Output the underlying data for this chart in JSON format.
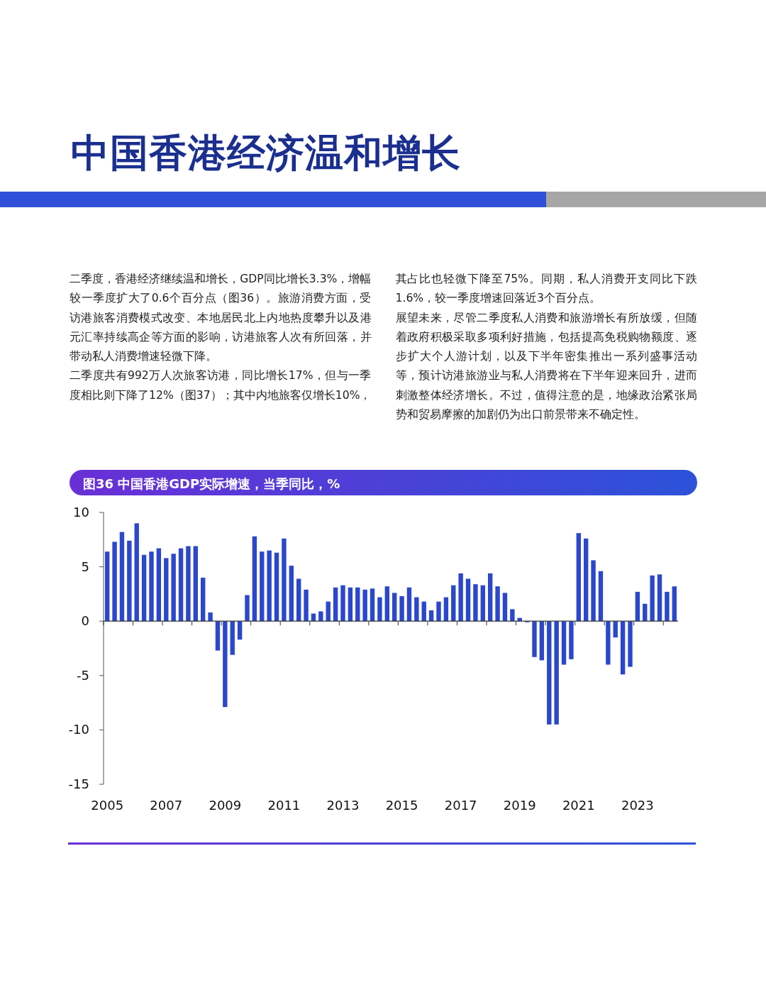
{
  "chart_data": {
    "type": "bar",
    "title": "图36 中国香港GDP实际增速，当季同比，%",
    "annotations": [
      "中国香港经济温和增长",
      "二季度，香港经济继续温和增长，GDP同比增长3.3%，增幅较一季度扩大了0.6个百分点（图36）。旅游消费方面，受访港旅客消费模式改变、本地居民北上内地热度攀升以及港元汇率持续高企等方面的影响，访港旅客人次有所回落，并带动私人消费增速轻微下降。",
      "二季度共有992万人次旅客访港，同比增长17%，但与一季度相比则下降了12%（图37）；其中内地旅客仅增长10%，其占比也轻微下降至75%。同期，私人消费开支同比下跌1.6%，较一季度增速回落近3个百分点。",
      "展望未来，尽管二季度私人消费和旅游增长有所放缓，但随着政府积极采取多项利好措施，包括提高免税购物额度、逐步扩大个人游计划，以及下半年密集推出一系列盛事活动等，预计访港旅游业与私人消费将在下半年迎来回升，进而刺激整体经济增长。不过，值得注意的是，地缘政治紧张局势和贸易摩擦的加剧仍为出口前景带来不确定性。"
    ],
    "categories": [
      "2005",
      null,
      null,
      null,
      null,
      null,
      null,
      null,
      "2007",
      null,
      null,
      null,
      null,
      null,
      null,
      null,
      "2009",
      null,
      null,
      null,
      null,
      null,
      null,
      null,
      "2011",
      null,
      null,
      null,
      null,
      null,
      null,
      null,
      "2013",
      null,
      null,
      null,
      null,
      null,
      null,
      null,
      "2015",
      null,
      null,
      null,
      null,
      null,
      null,
      null,
      "2017",
      null,
      null,
      null,
      null,
      null,
      null,
      null,
      "2019",
      null,
      null,
      null,
      null,
      null,
      null,
      null,
      "2021",
      null,
      null,
      null,
      null,
      null,
      null,
      null,
      "2023",
      null,
      null,
      null,
      null,
      null
    ],
    "values": [
      6.4,
      7.3,
      8.2,
      7.4,
      9.0,
      6.1,
      6.4,
      6.7,
      5.8,
      6.2,
      6.7,
      6.9,
      6.9,
      4.0,
      0.8,
      -2.7,
      -7.9,
      -3.1,
      -1.7,
      2.4,
      7.8,
      6.4,
      6.5,
      6.3,
      7.6,
      5.1,
      3.9,
      2.9,
      0.7,
      0.9,
      1.8,
      3.1,
      3.3,
      3.1,
      3.1,
      2.9,
      3.0,
      2.2,
      3.2,
      2.6,
      2.3,
      3.1,
      2.2,
      1.8,
      1.0,
      1.8,
      2.2,
      3.3,
      4.4,
      3.9,
      3.4,
      3.3,
      4.4,
      3.2,
      2.6,
      1.1,
      0.3,
      -0.1,
      -3.3,
      -3.6,
      -9.5,
      -9.5,
      -4.0,
      -3.5,
      8.1,
      7.6,
      5.6,
      4.6,
      -4.0,
      -1.5,
      -4.9,
      -4.2,
      2.7,
      1.6,
      4.2,
      4.3,
      2.7,
      3.2
    ],
    "color": "#2b47cc",
    "ylim": [
      -15,
      10
    ],
    "yticks": [
      -15,
      -10,
      -5,
      0,
      5,
      10
    ]
  }
}
